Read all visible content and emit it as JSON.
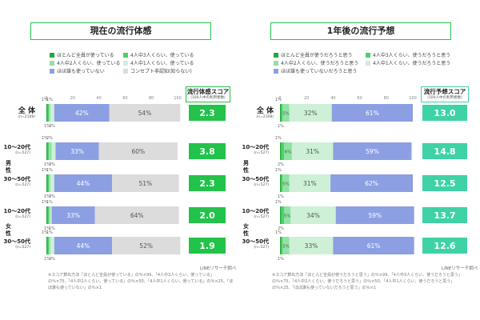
{
  "source": "LINEリサーチ調べ",
  "colors": {
    "c1": "#1fae3c",
    "c2": "#4fcf6a",
    "c3": "#8fe3a3",
    "c4": "#cdf0d6",
    "c5": "#8c9fe3",
    "c6": "#dcdcdc",
    "score": "#22c34a",
    "score_future": "#3fd2a6"
  },
  "left": {
    "title": "現在の流行体感",
    "legend": [
      {
        "label": "ほとんど全員が使っている",
        "color": "#1fae3c"
      },
      {
        "label": "4人中3人くらい、使っている",
        "color": "#4fcf6a"
      },
      {
        "label": "4人中2人くらい、使っている",
        "color": "#8fe3a3"
      },
      {
        "label": "4人中1人くらい、使っている",
        "color": "#cdf0d6"
      },
      {
        "label": "ほぼ誰も使っていない",
        "color": "#8c9fe3"
      },
      {
        "label": "コンセプト非認知(知らない)",
        "color": "#dcdcdc"
      }
    ],
    "score_title": "流行体感スコア",
    "score_sub": "(100人中の利用者数)",
    "notes": "※スコア算出方法「ほとんど全員が使っている」の％×99、「4人中3人くらい、使っている」の％×75、「4人中2人くらい、使っている」の％×50、「4人中1人くらい、使っている」の％×25、「ほぼ誰も使っていない」の％×1"
  },
  "right": {
    "title": "1年後の流行予想",
    "legend": [
      {
        "label": "ほとんど全員が使うだろうと思う",
        "color": "#1fae3c"
      },
      {
        "label": "4人中3人くらい、使うだろうと思う",
        "color": "#4fcf6a"
      },
      {
        "label": "4人中2人くらい、使うだろうと思う",
        "color": "#8fe3a3"
      },
      {
        "label": "4人中1人くらい、使うだろうと思う",
        "color": "#cdf0d6"
      },
      {
        "label": "ほぼ誰も使っていないだろうと思う",
        "color": "#8c9fe3"
      }
    ],
    "score_title": "流行予想スコア",
    "score_sub": "(100人中の利用者数)",
    "notes": "※スコア算出方法「ほとんど全員が使うだろうと思う」の％×99、「4人中3人くらい、使うだろうと思う」の％×75、「4人中2人くらい、使うだろうと思う」の％×50、「4人中1人くらい、使うだろうと思う」の％×25、「ほぼ誰も使っていないだろうと思う」の％×1"
  },
  "rows": [
    {
      "label": "全 体",
      "n": "(n=2108)",
      "group": ""
    },
    {
      "label": "10〜20代",
      "n": "(n=527)",
      "group": "男性"
    },
    {
      "label": "30〜50代",
      "n": "(n=527)",
      "group": "男性"
    },
    {
      "label": "10〜20代",
      "n": "(n=527)",
      "group": "女性"
    },
    {
      "label": "30〜50代",
      "n": "(n=527)",
      "group": "女性"
    }
  ],
  "groups": [
    {
      "label": "男 性"
    },
    {
      "label": "女 性"
    }
  ],
  "chart_data": [
    {
      "type": "bar",
      "orientation": "horizontal-stacked",
      "title": "現在の流行体感",
      "categories": [
        "全体",
        "男性10〜20代",
        "男性30〜50代",
        "女性10〜20代",
        "女性30〜50代"
      ],
      "xlim": [
        0,
        100
      ],
      "ticks": [
        0,
        20,
        40,
        60,
        80,
        100
      ],
      "series": [
        {
          "name": "ほとんど全員が使っている",
          "values": [
            1,
            1,
            1,
            1,
            1
          ]
        },
        {
          "name": "4人中3人くらい、使っている",
          "values": [
            1,
            1,
            1,
            1,
            1
          ]
        },
        {
          "name": "4人中2人くらい、使っている",
          "values": [
            1,
            2,
            1,
            1,
            1
          ]
        },
        {
          "name": "4人中1人くらい、使っている",
          "values": [
            3,
            3,
            3,
            1,
            3
          ]
        },
        {
          "name": "ほぼ誰も使っていない",
          "values": [
            42,
            33,
            44,
            33,
            44
          ]
        },
        {
          "name": "コンセプト非認知(知らない)",
          "values": [
            54,
            60,
            51,
            64,
            52
          ]
        }
      ],
      "scores": [
        "2.3",
        "3.8",
        "2.3",
        "2.0",
        "1.9"
      ]
    },
    {
      "type": "bar",
      "orientation": "horizontal-stacked",
      "title": "1年後の流行予想",
      "categories": [
        "全体",
        "男性10〜20代",
        "男性30〜50代",
        "女性10〜20代",
        "女性30〜50代"
      ],
      "xlim": [
        0,
        100
      ],
      "ticks": [
        0,
        20,
        40,
        60,
        80,
        100
      ],
      "series": [
        {
          "name": "ほとんど全員が使うだろうと思う",
          "values": [
            1,
            1,
            1,
            1,
            1
          ]
        },
        {
          "name": "4人中3人くらい、使うだろうと思う",
          "values": [
            1,
            2,
            1,
            2,
            1
          ]
        },
        {
          "name": "4人中2人くらい、使うだろうと思う",
          "values": [
            5,
            6,
            5,
            5,
            5
          ]
        },
        {
          "name": "4人中1人くらい、使うだろうと思う",
          "values": [
            32,
            31,
            31,
            34,
            33
          ]
        },
        {
          "name": "ほぼ誰も使っていないだろうと思う",
          "values": [
            61,
            59,
            62,
            59,
            61
          ]
        }
      ],
      "scores": [
        "13.0",
        "14.8",
        "12.5",
        "13.7",
        "12.6"
      ]
    }
  ]
}
